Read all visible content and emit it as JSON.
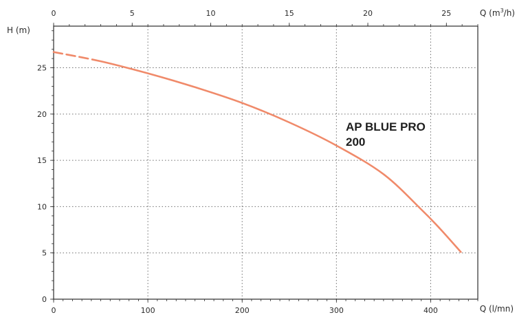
{
  "chart_data": {
    "type": "line",
    "y_axis": {
      "label": "H (m)",
      "ticks": [
        "0",
        "5",
        "10",
        "15",
        "20",
        "25"
      ],
      "range": [
        0,
        29.5
      ]
    },
    "x_axis_bottom": {
      "label": "Q (l/mn)",
      "ticks": [
        "0",
        "100",
        "200",
        "300",
        "400"
      ],
      "range": [
        0,
        450
      ]
    },
    "x_axis_top": {
      "label_main": "Q (m",
      "label_sup": "3",
      "label_end": "/h)",
      "ticks": [
        "0",
        "5",
        "10",
        "15",
        "20",
        "25"
      ],
      "range": [
        0,
        27
      ]
    },
    "grid": true,
    "series": [
      {
        "name": "AP BLUE PRO 200",
        "name_line1": "AP BLUE PRO",
        "name_line2": "200",
        "color": "#f08a6a",
        "dashed_until_x": 40,
        "points": [
          {
            "x": 0,
            "y": 26.7
          },
          {
            "x": 50,
            "y": 25.7
          },
          {
            "x": 100,
            "y": 24.4
          },
          {
            "x": 150,
            "y": 22.9
          },
          {
            "x": 200,
            "y": 21.2
          },
          {
            "x": 250,
            "y": 19.1
          },
          {
            "x": 300,
            "y": 16.6
          },
          {
            "x": 350,
            "y": 13.5
          },
          {
            "x": 390,
            "y": 9.7
          },
          {
            "x": 410,
            "y": 7.6
          },
          {
            "x": 432,
            "y": 5.1
          }
        ]
      }
    ]
  }
}
